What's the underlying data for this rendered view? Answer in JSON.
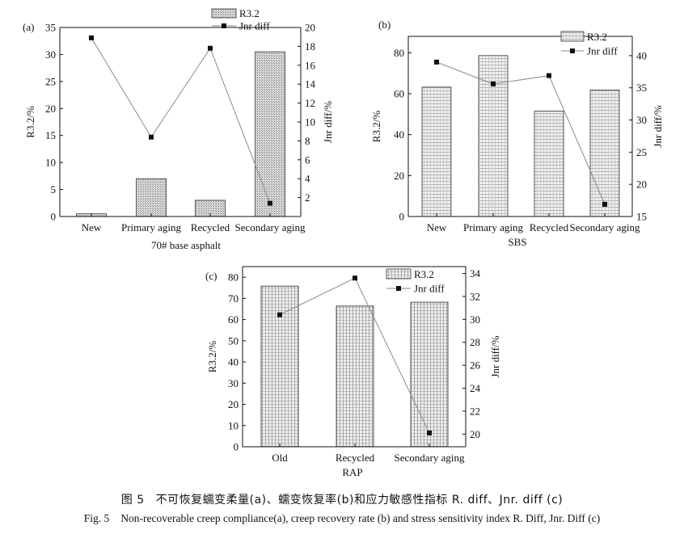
{
  "figure": {
    "caption_cn_label": "图 5",
    "caption_cn_text": "不可恢复蠕变柔量(a)、蠕变恢复率(b)和应力敏感性指标 R. diff、Jnr. diff (c)",
    "caption_en_label": "Fig. 5",
    "caption_en_text": "Non-recoverable creep compliance(a), creep recovery rate (b) and stress sensitivity index R. Diff, Jnr. Diff (c)",
    "colors": {
      "line": "#8a8a8a",
      "marker": "#111111",
      "axis": "#111111"
    }
  },
  "chart_data": [
    {
      "panel": "(a)",
      "type": "bar",
      "xlabel": "70# base asphalt",
      "ylabel": "R3.2/%",
      "y2label": "Jnr diff/%",
      "categories": [
        "New",
        "Primary aging",
        "Recycled",
        "Secondary aging"
      ],
      "ylim": [
        0,
        35
      ],
      "yticks": [
        0,
        5,
        10,
        15,
        20,
        25,
        30,
        35
      ],
      "y2lim": [
        0,
        20
      ],
      "y2ticks": [
        2,
        4,
        6,
        8,
        10,
        12,
        14,
        16,
        18,
        20
      ],
      "series": [
        {
          "name": "R3.2",
          "type": "bar",
          "axis": "left",
          "values": [
            0.5,
            7.0,
            3.0,
            30.5
          ]
        },
        {
          "name": "Jnr diff",
          "type": "line",
          "axis": "right",
          "values": [
            18.9,
            8.4,
            17.8,
            1.4
          ]
        }
      ],
      "legend_position": "top-center"
    },
    {
      "panel": "(b)",
      "type": "bar",
      "xlabel": "SBS",
      "ylabel": "R3.2/%",
      "y2label": "Jnr diff/%",
      "categories": [
        "New",
        "Primary aging",
        "Recycled",
        "Secondary aging"
      ],
      "ylim": [
        0,
        88
      ],
      "yticks": [
        0,
        20,
        40,
        60,
        80
      ],
      "y2lim": [
        15,
        43
      ],
      "y2ticks": [
        15,
        20,
        25,
        30,
        35,
        40
      ],
      "series": [
        {
          "name": "R3.2",
          "type": "bar",
          "axis": "left",
          "values": [
            63.2,
            78.6,
            51.5,
            61.8
          ]
        },
        {
          "name": "Jnr diff",
          "type": "line",
          "axis": "right",
          "values": [
            39.0,
            35.6,
            36.9,
            16.9
          ]
        }
      ],
      "legend_position": "top-right"
    },
    {
      "panel": "(c)",
      "type": "bar",
      "xlabel": "RAP",
      "ylabel": "R3.2/%",
      "y2label": "Jnr diff/%",
      "categories": [
        "Old",
        "Recycled",
        "Secondary aging"
      ],
      "ylim": [
        0,
        85
      ],
      "yticks": [
        0,
        10,
        20,
        30,
        40,
        50,
        60,
        70,
        80
      ],
      "y2lim": [
        18.9,
        34.6
      ],
      "y2ticks": [
        20,
        22,
        24,
        26,
        28,
        30,
        32,
        34
      ],
      "series": [
        {
          "name": "R3.2",
          "type": "bar",
          "axis": "left",
          "values": [
            75.8,
            66.4,
            68.2
          ]
        },
        {
          "name": "Jnr diff",
          "type": "line",
          "axis": "right",
          "values": [
            30.4,
            33.6,
            20.1
          ]
        }
      ],
      "legend_position": "top-center"
    }
  ]
}
